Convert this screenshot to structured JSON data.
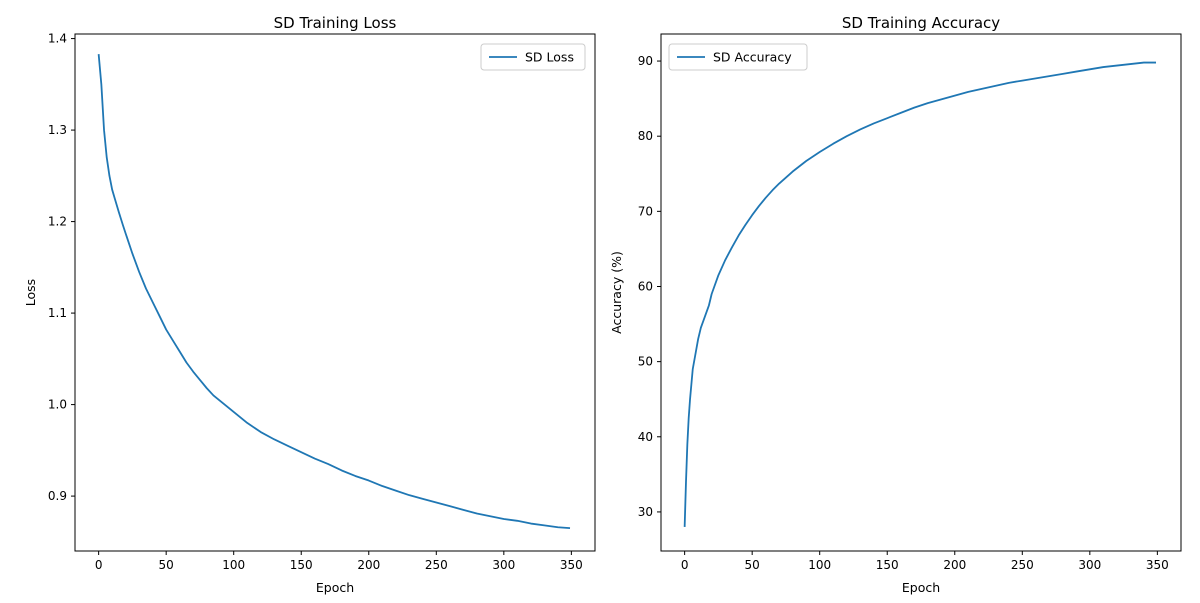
{
  "chart_data": [
    {
      "type": "line",
      "title": "SD Training Loss",
      "xlabel": "Epoch",
      "ylabel": "Loss",
      "xlim": [
        -17.5,
        367.5
      ],
      "ylim": [
        0.84,
        1.405
      ],
      "xticks": [
        0,
        50,
        100,
        150,
        200,
        250,
        300,
        350
      ],
      "xtick_labels": [
        "0",
        "50",
        "100",
        "150",
        "200",
        "250",
        "300",
        "350"
      ],
      "yticks": [
        0.9,
        1.0,
        1.1,
        1.2,
        1.3,
        1.4
      ],
      "ytick_labels": [
        "0.9",
        "1.0",
        "1.1",
        "1.2",
        "1.3",
        "1.4"
      ],
      "legend_position": "top-right",
      "grid": false,
      "series": [
        {
          "name": "SD Loss",
          "color": "#1f77b4",
          "x": [
            0,
            2,
            4,
            6,
            8,
            10,
            12,
            15,
            18,
            20,
            25,
            30,
            35,
            40,
            45,
            50,
            55,
            60,
            65,
            70,
            75,
            80,
            85,
            90,
            95,
            100,
            110,
            120,
            130,
            140,
            150,
            160,
            170,
            180,
            190,
            200,
            210,
            220,
            230,
            240,
            250,
            260,
            270,
            280,
            290,
            300,
            310,
            320,
            330,
            340,
            349
          ],
          "y": [
            1.383,
            1.35,
            1.3,
            1.27,
            1.25,
            1.235,
            1.225,
            1.21,
            1.196,
            1.187,
            1.165,
            1.145,
            1.127,
            1.112,
            1.097,
            1.082,
            1.07,
            1.058,
            1.046,
            1.036,
            1.027,
            1.018,
            1.01,
            1.004,
            0.998,
            0.992,
            0.98,
            0.97,
            0.962,
            0.955,
            0.948,
            0.941,
            0.935,
            0.928,
            0.922,
            0.917,
            0.911,
            0.906,
            0.901,
            0.897,
            0.893,
            0.889,
            0.885,
            0.881,
            0.878,
            0.875,
            0.873,
            0.87,
            0.868,
            0.866,
            0.865
          ]
        }
      ]
    },
    {
      "type": "line",
      "title": "SD Training Accuracy",
      "xlabel": "Epoch",
      "ylabel": "Accuracy (%)",
      "xlim": [
        -17.5,
        367.5
      ],
      "ylim": [
        24.8,
        93.6
      ],
      "xticks": [
        0,
        50,
        100,
        150,
        200,
        250,
        300,
        350
      ],
      "xtick_labels": [
        "0",
        "50",
        "100",
        "150",
        "200",
        "250",
        "300",
        "350"
      ],
      "yticks": [
        30,
        40,
        50,
        60,
        70,
        80,
        90
      ],
      "ytick_labels": [
        "30",
        "40",
        "50",
        "60",
        "70",
        "80",
        "90"
      ],
      "legend_position": "top-left",
      "grid": false,
      "series": [
        {
          "name": "SD Accuracy",
          "color": "#1f77b4",
          "x": [
            0,
            1,
            2,
            3,
            4,
            5,
            6,
            8,
            10,
            12,
            15,
            18,
            20,
            25,
            30,
            35,
            40,
            45,
            50,
            55,
            60,
            65,
            70,
            75,
            80,
            85,
            90,
            95,
            100,
            110,
            120,
            130,
            140,
            150,
            160,
            170,
            180,
            190,
            200,
            210,
            220,
            230,
            240,
            250,
            260,
            270,
            280,
            290,
            300,
            310,
            320,
            330,
            340,
            349
          ],
          "y": [
            28.0,
            34.0,
            39.0,
            42.5,
            45.0,
            47.0,
            49.0,
            51.0,
            53.0,
            54.5,
            56.0,
            57.5,
            59.0,
            61.5,
            63.5,
            65.2,
            66.8,
            68.2,
            69.5,
            70.7,
            71.8,
            72.8,
            73.7,
            74.5,
            75.3,
            76.0,
            76.7,
            77.3,
            77.9,
            79.0,
            80.0,
            80.9,
            81.7,
            82.4,
            83.1,
            83.8,
            84.4,
            84.9,
            85.4,
            85.9,
            86.3,
            86.7,
            87.1,
            87.4,
            87.7,
            88.0,
            88.3,
            88.6,
            88.9,
            89.2,
            89.4,
            89.6,
            89.8,
            89.8
          ]
        }
      ]
    }
  ]
}
